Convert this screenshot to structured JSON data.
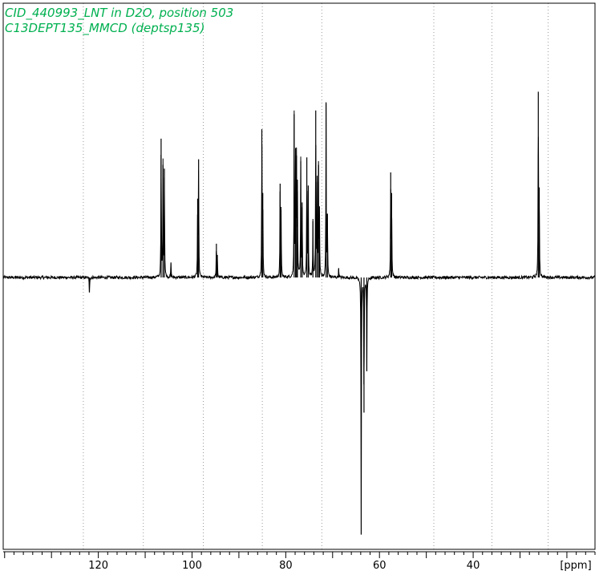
{
  "chart_data": {
    "type": "line",
    "title_lines": [
      "CID_440993_LNT in D2O, position 503",
      "C13DEPT135_MMCD (deptsp135)"
    ],
    "xlabel": "[ppm]",
    "x_reversed": true,
    "xlim": [
      140.3,
      14.0
    ],
    "ylim": [
      -150,
      100
    ],
    "x_ticks": [
      120,
      100,
      80,
      60,
      40
    ],
    "grid": "vertical dotted",
    "grid_positions_ppm": [
      123.2,
      110.4,
      97.6,
      85.0,
      72.3,
      48.4,
      36.0,
      24.0
    ],
    "baseline_level": 0,
    "series": [
      {
        "peaks": [
          {
            "ppm": 106.6,
            "intensity": 74
          },
          {
            "ppm": 106.2,
            "intensity": 60
          },
          {
            "ppm": 105.9,
            "intensity": 58
          },
          {
            "ppm": 104.5,
            "intensity": 8
          },
          {
            "ppm": 98.6,
            "intensity": 63
          },
          {
            "ppm": 98.8,
            "intensity": 42
          },
          {
            "ppm": 94.8,
            "intensity": 18
          },
          {
            "ppm": 94.6,
            "intensity": 12
          },
          {
            "ppm": 85.1,
            "intensity": 79
          },
          {
            "ppm": 84.9,
            "intensity": 45
          },
          {
            "ppm": 81.2,
            "intensity": 50
          },
          {
            "ppm": 81.0,
            "intensity": 36
          },
          {
            "ppm": 78.2,
            "intensity": 87
          },
          {
            "ppm": 77.9,
            "intensity": 69
          },
          {
            "ppm": 77.7,
            "intensity": 65
          },
          {
            "ppm": 77.5,
            "intensity": 46
          },
          {
            "ppm": 76.8,
            "intensity": 62
          },
          {
            "ppm": 76.5,
            "intensity": 40
          },
          {
            "ppm": 75.5,
            "intensity": 64
          },
          {
            "ppm": 75.2,
            "intensity": 49
          },
          {
            "ppm": 74.2,
            "intensity": 30
          },
          {
            "ppm": 73.6,
            "intensity": 89
          },
          {
            "ppm": 73.3,
            "intensity": 51
          },
          {
            "ppm": 73.0,
            "intensity": 60
          },
          {
            "ppm": 72.8,
            "intensity": 33
          },
          {
            "ppm": 71.4,
            "intensity": 93
          },
          {
            "ppm": 71.1,
            "intensity": 34
          },
          {
            "ppm": 68.7,
            "intensity": 5
          },
          {
            "ppm": 63.9,
            "intensity": -137
          },
          {
            "ppm": 63.3,
            "intensity": -72
          },
          {
            "ppm": 62.7,
            "intensity": -50
          },
          {
            "ppm": 57.6,
            "intensity": 56
          },
          {
            "ppm": 57.4,
            "intensity": 45
          },
          {
            "ppm": 26.1,
            "intensity": 99
          },
          {
            "ppm": 25.9,
            "intensity": 48
          },
          {
            "ppm": 121.9,
            "intensity": -8
          }
        ]
      }
    ]
  }
}
